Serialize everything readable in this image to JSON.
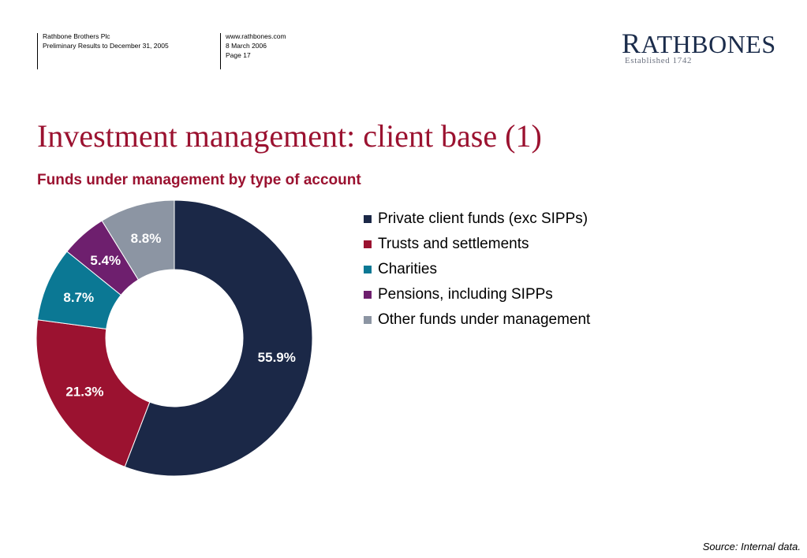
{
  "header": {
    "company": "Rathbone Brothers Plc",
    "report": "Preliminary Results to December 31, 2005",
    "website": "www.rathbones.com",
    "date": "8 March 2006",
    "page": "Page 17"
  },
  "logo": {
    "name_initial": "R",
    "name_rest": "ATHBONES",
    "tagline": "Established 1742"
  },
  "page_title": "Investment management: client base (1)",
  "source_note": "Source: Internal data.",
  "chart_data": {
    "type": "pie",
    "donut": true,
    "title": "Funds under management by type of account",
    "legend_position": "right",
    "series": [
      {
        "name": "Private client funds (exc SIPPs)",
        "value": 55.9,
        "label": "55.9%",
        "color": "#1b2847"
      },
      {
        "name": "Trusts and settlements",
        "value": 21.3,
        "label": "21.3%",
        "color": "#9b1230"
      },
      {
        "name": "Charities",
        "value": 8.7,
        "label": "8.7%",
        "color": "#0b7894"
      },
      {
        "name": "Pensions, including SIPPs",
        "value": 5.4,
        "label": "5.4%",
        "color": "#6e1f6e"
      },
      {
        "name": "Other funds under management",
        "value": 8.8,
        "label": "8.8%",
        "color": "#8c95a3"
      }
    ]
  }
}
